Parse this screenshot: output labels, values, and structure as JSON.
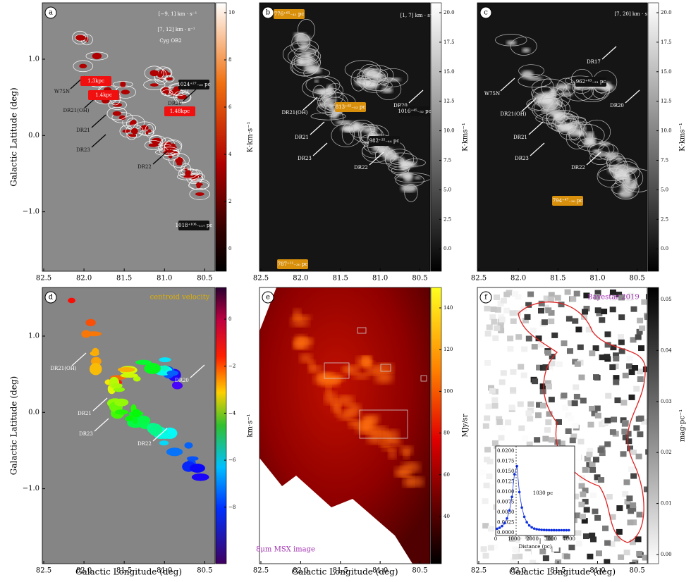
{
  "y_axis_label": "Galactic Latitude (deg)",
  "x_axis_label": "Galactic Longitude (deg)",
  "x_ticks": [
    "82.5",
    "82.0",
    "81.5",
    "81.0",
    "80.5"
  ],
  "y_ticks": [
    "1.0",
    "0.0",
    "−1.0"
  ],
  "panels": [
    {
      "letter": "a",
      "colorbar_label": "K·km·s⁻¹",
      "colorbar_ticks": [
        "10",
        "8",
        "6",
        "4",
        "2",
        "0"
      ],
      "annotations": [
        "[−9, 1] km · s⁻¹",
        "[7, 12] km · s⁻¹",
        "Cyg OB2",
        "W75N",
        "DR21(OH)",
        "DR21",
        "DR23",
        "DR22",
        "DR20",
        "1.3kpc",
        "1.4kpc",
        "1.48kpc",
        "1024⁺²⁷₋₂₅ pc",
        "1018⁺¹⁰⁶₋₁₁₇ pc"
      ]
    },
    {
      "letter": "b",
      "colorbar_label": "K·kms⁻¹",
      "colorbar_ticks": [
        "20.0",
        "17.5",
        "15.0",
        "12.5",
        "10.0",
        "7.5",
        "5.0",
        "2.5",
        "0.0"
      ],
      "annotations": [
        "[1, 7] km · s⁻¹",
        "DR21(OH)",
        "DR21",
        "DR23",
        "DR22",
        "DR20",
        "776⁺⁶⁵₋₄₁ pc",
        "813⁺⁶⁵₋₅₃ pc",
        "1016⁺⁴⁵₋₃₂ pc",
        "982⁺²⁵₋₄₄ pc",
        "787⁺²¹₋₃₀ pc"
      ]
    },
    {
      "letter": "c",
      "colorbar_label": "K·kms⁻¹",
      "colorbar_ticks": [
        "20.0",
        "17.5",
        "15.0",
        "12.5",
        "10.0",
        "7.5",
        "5.0",
        "2.5",
        "0.0"
      ],
      "annotations": [
        "[7, 20] km · s⁻¹",
        "DR17",
        "W75N",
        "DR21(OH)",
        "DR21",
        "DR23",
        "DR22",
        "DR20",
        "962⁺⁶³₋₃₁ pc",
        "794⁺⁴⁷₋₃₀ pc"
      ]
    },
    {
      "letter": "d",
      "colorbar_label": "km·s⁻¹",
      "colorbar_ticks": [
        "0",
        "−2",
        "−4",
        "−6",
        "−8"
      ],
      "annotations": [
        "centroid velocity",
        "DR21(OH)",
        "DR21",
        "DR23",
        "DR22",
        "DR20"
      ]
    },
    {
      "letter": "e",
      "colorbar_label": "MJy/sr",
      "colorbar_ticks": [
        "140",
        "120",
        "100",
        "80",
        "60",
        "40"
      ],
      "annotations": [
        "8μm MSX image"
      ]
    },
    {
      "letter": "f",
      "colorbar_label": "mag·pc⁻¹",
      "colorbar_ticks": [
        "0.05",
        "0.04",
        "0.03",
        "0.02",
        "0.01",
        "0.00"
      ],
      "annotations": [
        "Bayestar 2019"
      ],
      "inset": {
        "label": "1030 pc",
        "x_label": "Distance (pc)",
        "x_ticks": [
          "0",
          "1000",
          "2000",
          "3000",
          "4000"
        ],
        "y_ticks": [
          "0.0000",
          "0.0025",
          "0.0050",
          "0.0075",
          "0.0100",
          "0.0125",
          "0.0150",
          "0.0175",
          "0.0200"
        ]
      }
    }
  ]
}
